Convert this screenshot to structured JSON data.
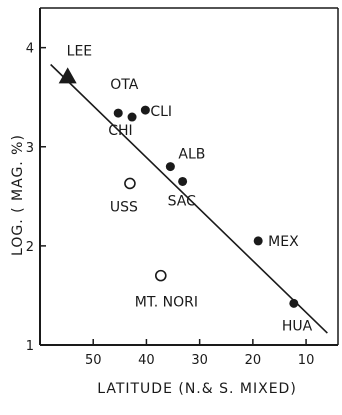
{
  "chart_data": {
    "type": "scatter",
    "xlabel": "LATITUDE (N.& S. MIXED)",
    "ylabel": "LOG. ( MAG. %)",
    "xlim": [
      60,
      4
    ],
    "ylim": [
      1,
      4.4
    ],
    "x_ticks": [
      "50",
      "40",
      "30",
      "20",
      "10"
    ],
    "y_ticks": [
      "1",
      "2",
      "3",
      "4"
    ],
    "x_tick_values": [
      50,
      40,
      30,
      20,
      10
    ],
    "y_tick_values": [
      1,
      2,
      3,
      4
    ],
    "trend_line": {
      "x": [
        58,
        6
      ],
      "y": [
        3.83,
        1.12
      ]
    },
    "points": [
      {
        "label": "LEE",
        "x": 54.8,
        "y": 3.7,
        "marker": "triangle"
      },
      {
        "label": "OTA",
        "x": 45.3,
        "y": 3.34,
        "marker": "filled"
      },
      {
        "label": "",
        "x": 42.7,
        "y": 3.3,
        "marker": "filled"
      },
      {
        "label": "CLI",
        "x": 40.2,
        "y": 3.37,
        "marker": "filled"
      },
      {
        "label": "CHI",
        "x": 45.3,
        "y": 3.34,
        "marker": "none"
      },
      {
        "label": "ALB",
        "x": 35.5,
        "y": 2.8,
        "marker": "filled"
      },
      {
        "label": "SAC",
        "x": 33.2,
        "y": 2.65,
        "marker": "filled"
      },
      {
        "label": "USS",
        "x": 43.1,
        "y": 2.63,
        "marker": "open"
      },
      {
        "label": "MEX",
        "x": 19.0,
        "y": 2.05,
        "marker": "filled"
      },
      {
        "label": "MT. NORI",
        "x": 37.3,
        "y": 1.7,
        "marker": "open"
      },
      {
        "label": "HUA",
        "x": 12.3,
        "y": 1.42,
        "marker": "filled"
      }
    ]
  }
}
